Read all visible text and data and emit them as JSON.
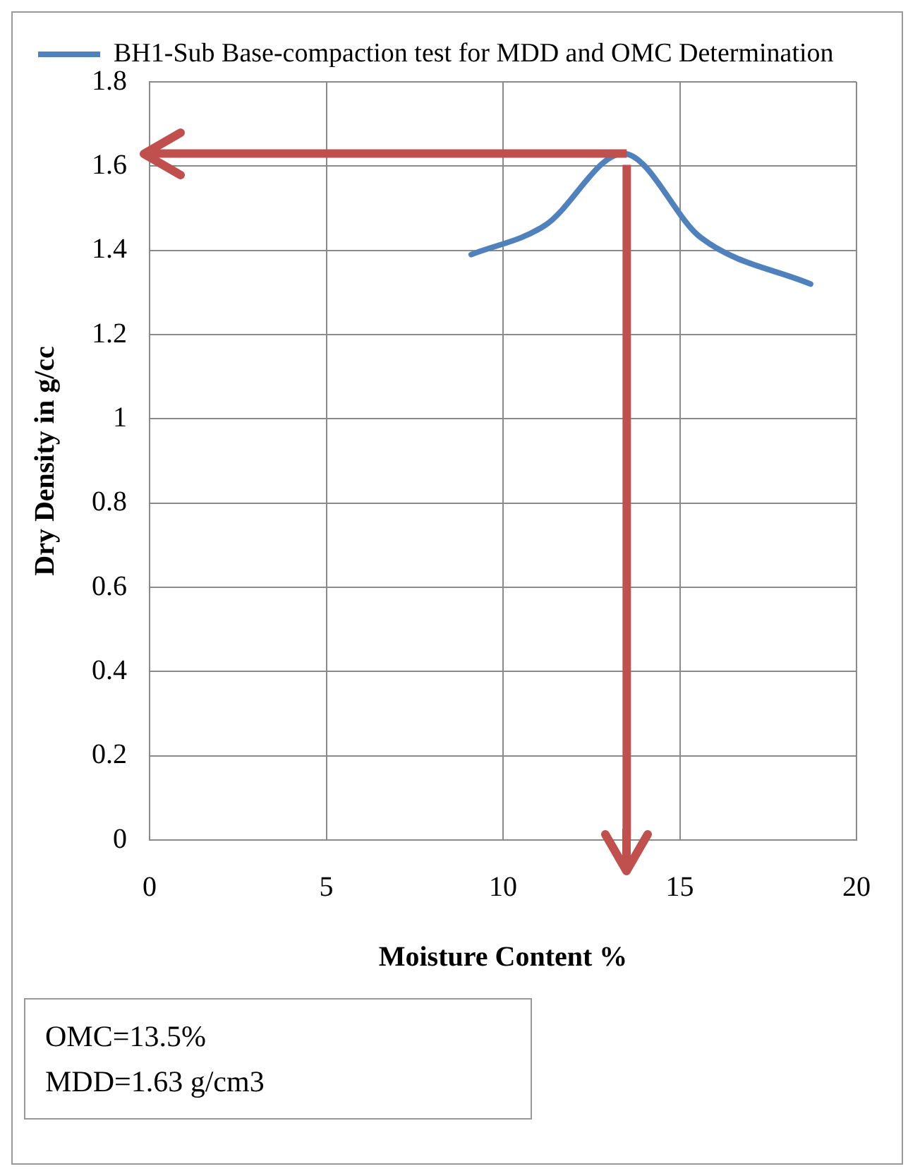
{
  "chart_data": {
    "type": "line",
    "xlabel": "Moisture Content %",
    "ylabel": "Dry Density in g/cc",
    "series": [
      {
        "name": "BH1-Sub Base-compaction test for MDD and OMC Determination",
        "color": "#4f81bd",
        "x": [
          9.1,
          11.2,
          13.4,
          15.6,
          18.7
        ],
        "values": [
          1.39,
          1.46,
          1.63,
          1.43,
          1.32
        ]
      }
    ],
    "xlim": [
      0,
      20
    ],
    "xticks": [
      0,
      5,
      10,
      15,
      20
    ],
    "ylim": [
      0,
      1.8
    ],
    "yticks": [
      0,
      0.2,
      0.4,
      0.6,
      0.8,
      1,
      1.2,
      1.4,
      1.6,
      1.8
    ],
    "grid": true,
    "legend": "top",
    "marker": "none",
    "ref_lines": [
      {
        "axis": "y",
        "value": 1.63,
        "color": "#c0504d"
      },
      {
        "axis": "x",
        "value": 13.5,
        "color": "#c0504d"
      }
    ],
    "annotations": [
      "OMC=13.5%",
      "MDD=1.63 g/cm3"
    ]
  }
}
